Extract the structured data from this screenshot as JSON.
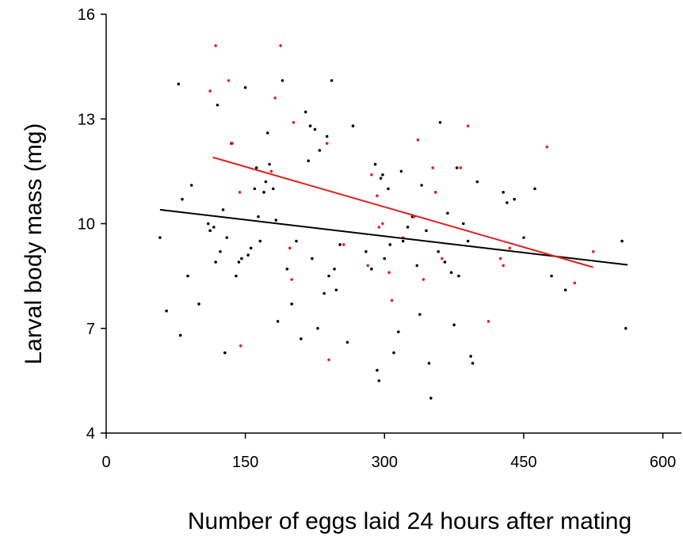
{
  "chart_data": {
    "type": "scatter",
    "title": "",
    "xlabel": "Number of eggs laid 24 hours after mating",
    "ylabel": "Larval body mass (mg)",
    "xlim": [
      0,
      620
    ],
    "ylim": [
      4,
      16
    ],
    "xticks": [
      0,
      150,
      300,
      450,
      600
    ],
    "yticks": [
      4,
      7,
      10,
      13,
      16
    ],
    "xtick_labels": [
      "0",
      "150",
      "300",
      "450",
      "600"
    ],
    "ytick_labels": [
      "4",
      "7",
      "10",
      "13",
      "16"
    ],
    "grid": false,
    "legend": "none",
    "series": [
      {
        "color": "#000000",
        "points": [
          [
            58,
            9.6
          ],
          [
            65,
            7.5
          ],
          [
            78,
            14.0
          ],
          [
            80,
            6.8
          ],
          [
            82,
            10.7
          ],
          [
            88,
            8.5
          ],
          [
            92,
            11.1
          ],
          [
            100,
            7.7
          ],
          [
            110,
            10.0
          ],
          [
            112,
            9.8
          ],
          [
            116,
            9.9
          ],
          [
            118,
            8.9
          ],
          [
            120,
            13.4
          ],
          [
            123,
            9.2
          ],
          [
            126,
            10.4
          ],
          [
            128,
            6.3
          ],
          [
            130,
            9.6
          ],
          [
            135,
            12.3
          ],
          [
            140,
            8.5
          ],
          [
            143,
            8.9
          ],
          [
            146,
            9.0
          ],
          [
            150,
            13.9
          ],
          [
            153,
            9.1
          ],
          [
            156,
            9.3
          ],
          [
            160,
            11.0
          ],
          [
            162,
            11.6
          ],
          [
            164,
            10.2
          ],
          [
            166,
            9.5
          ],
          [
            170,
            10.9
          ],
          [
            172,
            11.2
          ],
          [
            174,
            12.6
          ],
          [
            176,
            11.7
          ],
          [
            180,
            11.0
          ],
          [
            183,
            10.1
          ],
          [
            185,
            7.2
          ],
          [
            190,
            14.1
          ],
          [
            195,
            8.7
          ],
          [
            200,
            7.7
          ],
          [
            205,
            9.5
          ],
          [
            210,
            6.7
          ],
          [
            215,
            13.2
          ],
          [
            218,
            11.8
          ],
          [
            220,
            12.8
          ],
          [
            222,
            9.0
          ],
          [
            225,
            12.7
          ],
          [
            228,
            7.0
          ],
          [
            230,
            12.1
          ],
          [
            235,
            8.0
          ],
          [
            238,
            12.5
          ],
          [
            240,
            8.5
          ],
          [
            243,
            14.1
          ],
          [
            246,
            8.7
          ],
          [
            248,
            8.1
          ],
          [
            252,
            9.4
          ],
          [
            260,
            6.6
          ],
          [
            266,
            12.8
          ],
          [
            280,
            9.2
          ],
          [
            286,
            8.7
          ],
          [
            290,
            11.7
          ],
          [
            292,
            5.8
          ],
          [
            294,
            5.5
          ],
          [
            296,
            11.3
          ],
          [
            298,
            11.4
          ],
          [
            300,
            9.0
          ],
          [
            304,
            11.0
          ],
          [
            306,
            9.4
          ],
          [
            310,
            6.3
          ],
          [
            315,
            6.9
          ],
          [
            318,
            11.5
          ],
          [
            320,
            9.5
          ],
          [
            325,
            9.9
          ],
          [
            330,
            10.2
          ],
          [
            335,
            8.8
          ],
          [
            338,
            7.4
          ],
          [
            340,
            11.1
          ],
          [
            345,
            9.8
          ],
          [
            348,
            6.0
          ],
          [
            350,
            5.0
          ],
          [
            355,
            10.9
          ],
          [
            358,
            9.2
          ],
          [
            360,
            12.9
          ],
          [
            365,
            8.9
          ],
          [
            368,
            10.3
          ],
          [
            372,
            8.6
          ],
          [
            375,
            7.1
          ],
          [
            378,
            11.6
          ],
          [
            380,
            8.5
          ],
          [
            385,
            10.0
          ],
          [
            390,
            9.5
          ],
          [
            393,
            6.2
          ],
          [
            395,
            6.0
          ],
          [
            400,
            11.2
          ],
          [
            428,
            10.9
          ],
          [
            432,
            10.6
          ],
          [
            440,
            10.7
          ],
          [
            450,
            9.6
          ],
          [
            462,
            11.0
          ],
          [
            480,
            8.5
          ],
          [
            495,
            8.1
          ],
          [
            556,
            9.5
          ],
          [
            560,
            7.0
          ]
        ]
      },
      {
        "color": "#e02020",
        "points": [
          [
            112,
            13.8
          ],
          [
            118,
            15.1
          ],
          [
            132,
            14.1
          ],
          [
            136,
            12.3
          ],
          [
            144,
            10.9
          ],
          [
            145,
            6.5
          ],
          [
            178,
            11.5
          ],
          [
            182,
            13.6
          ],
          [
            188,
            15.1
          ],
          [
            198,
            9.3
          ],
          [
            200,
            8.4
          ],
          [
            202,
            12.9
          ],
          [
            238,
            12.3
          ],
          [
            240,
            6.1
          ],
          [
            256,
            9.4
          ],
          [
            282,
            8.8
          ],
          [
            286,
            11.4
          ],
          [
            292,
            10.8
          ],
          [
            294,
            9.9
          ],
          [
            298,
            10.0
          ],
          [
            305,
            8.6
          ],
          [
            308,
            7.8
          ],
          [
            320,
            9.6
          ],
          [
            332,
            10.2
          ],
          [
            336,
            12.4
          ],
          [
            342,
            8.4
          ],
          [
            352,
            11.6
          ],
          [
            355,
            10.9
          ],
          [
            362,
            9.0
          ],
          [
            382,
            11.6
          ],
          [
            390,
            12.8
          ],
          [
            412,
            7.2
          ],
          [
            425,
            9.0
          ],
          [
            428,
            8.8
          ],
          [
            435,
            9.3
          ],
          [
            475,
            12.2
          ],
          [
            505,
            8.3
          ],
          [
            525,
            9.2
          ]
        ]
      }
    ],
    "trendlines": [
      {
        "color": "#000000",
        "x": [
          58,
          562
        ],
        "y": [
          10.4,
          8.82
        ]
      },
      {
        "color": "#e02020",
        "x": [
          115,
          525
        ],
        "y": [
          11.9,
          8.75
        ]
      }
    ]
  }
}
